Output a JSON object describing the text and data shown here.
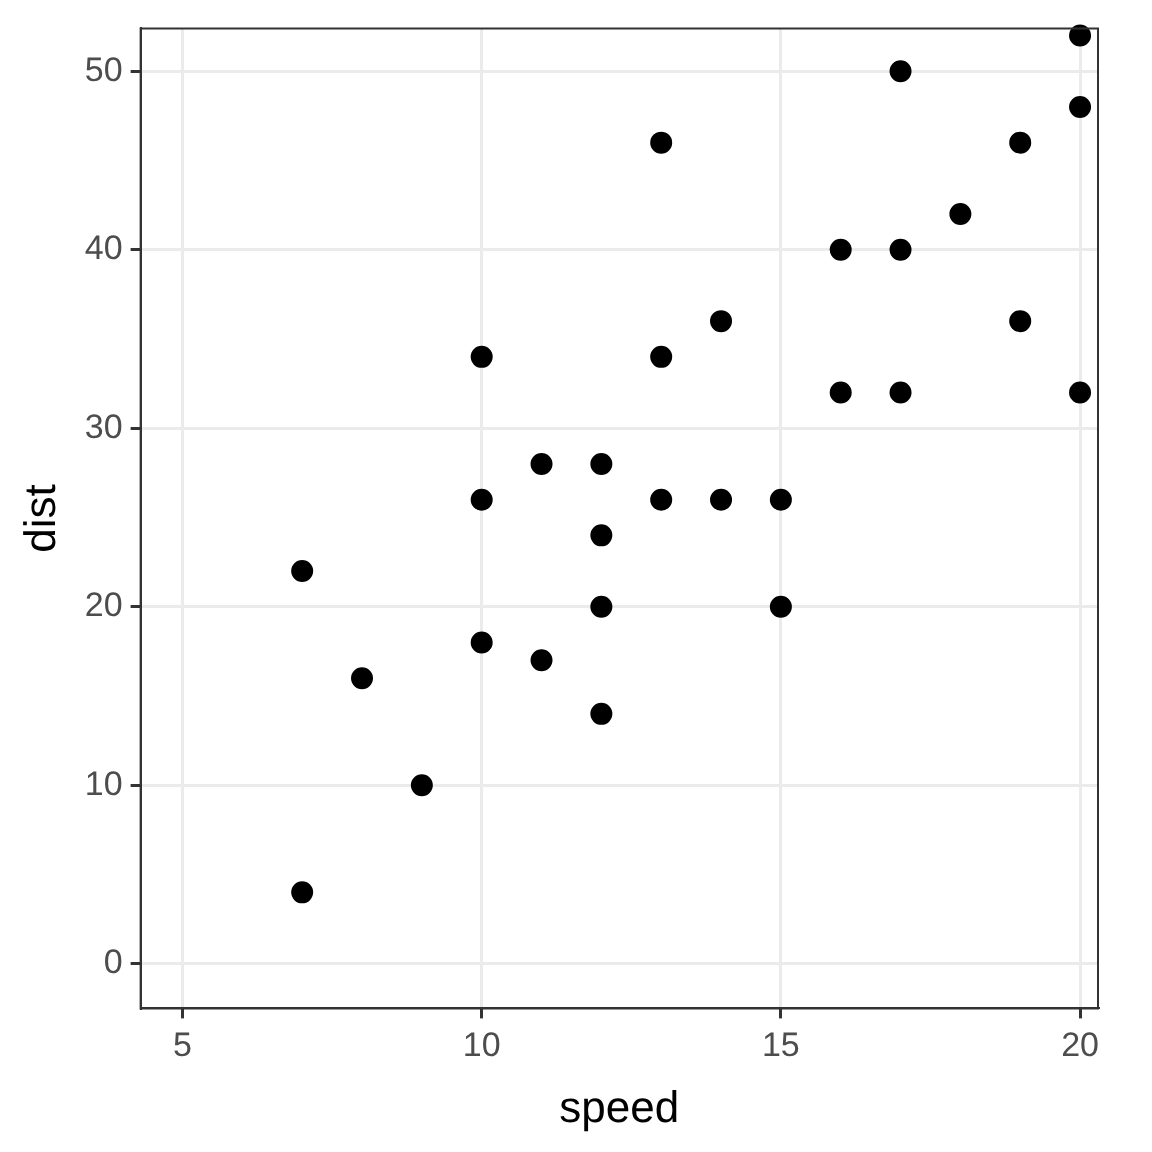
{
  "chart_data": {
    "type": "scatter",
    "xlabel": "speed",
    "ylabel": "dist",
    "x": [
      7,
      7,
      8,
      9,
      10,
      10,
      10,
      11,
      11,
      12,
      12,
      12,
      12,
      13,
      13,
      13,
      14,
      14,
      15,
      15,
      16,
      16,
      17,
      17,
      17,
      18,
      19,
      19,
      20,
      20,
      20
    ],
    "series": [
      {
        "color": "#000000",
        "values": [
          4,
          22,
          16,
          10,
          18,
          26,
          34,
          17,
          28,
          14,
          20,
          24,
          28,
          26,
          34,
          46,
          26,
          36,
          20,
          26,
          32,
          40,
          32,
          40,
          50,
          42,
          36,
          46,
          32,
          48,
          52
        ]
      }
    ],
    "xlim": [
      4.3,
      20.3
    ],
    "xticks": [
      5,
      10,
      15,
      20
    ],
    "ylim": [
      -2.5,
      52.4
    ],
    "yticks": [
      0,
      10,
      20,
      30,
      40,
      50
    ],
    "grid": true,
    "legend": false,
    "marker": "circle"
  }
}
